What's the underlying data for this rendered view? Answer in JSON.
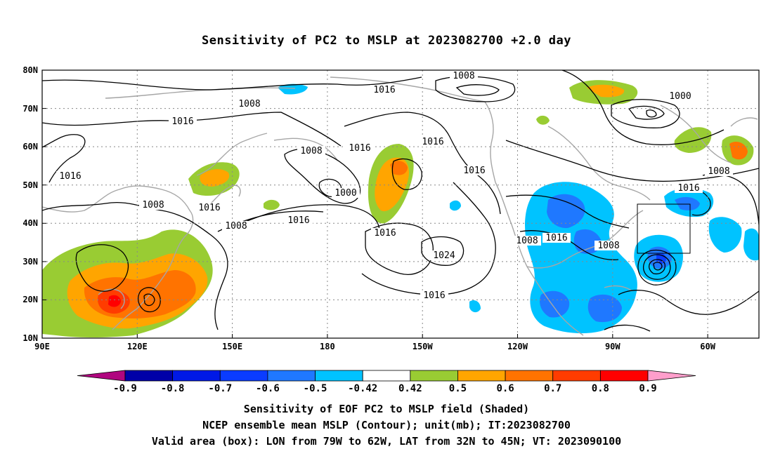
{
  "title": "Sensitivity of PC2 to MSLP at 2023082700 +2.0 day",
  "axes": {
    "lat_labels": [
      "80N",
      "70N",
      "60N",
      "50N",
      "40N",
      "30N",
      "20N",
      "10N"
    ],
    "lon_labels": [
      "90E",
      "120E",
      "150E",
      "180",
      "150W",
      "120W",
      "90W",
      "60W"
    ]
  },
  "contour_labels": [
    {
      "text": "1008"
    },
    {
      "text": "1008"
    },
    {
      "text": "1016"
    },
    {
      "text": "1016"
    },
    {
      "text": "1016"
    },
    {
      "text": "1000"
    },
    {
      "text": "1016"
    },
    {
      "text": "1008"
    },
    {
      "text": "1016"
    },
    {
      "text": "1008"
    },
    {
      "text": "1000"
    },
    {
      "text": "1016"
    },
    {
      "text": "1016"
    },
    {
      "text": "1008"
    },
    {
      "text": "1016"
    },
    {
      "text": "1016"
    },
    {
      "text": "1008"
    },
    {
      "text": "1016"
    },
    {
      "text": "1024"
    },
    {
      "text": "1008"
    },
    {
      "text": "1016"
    },
    {
      "text": "1008"
    },
    {
      "text": "1016"
    }
  ],
  "colorbar": {
    "labels": [
      "-0.9",
      "-0.8",
      "-0.7",
      "-0.6",
      "-0.5",
      "-0.42",
      "0.42",
      "0.5",
      "0.6",
      "0.7",
      "0.8",
      "0.9"
    ],
    "colors": [
      "#b0067f",
      "#0000a8",
      "#0019e6",
      "#0a3cff",
      "#1f78ff",
      "#00c3ff",
      "#ffffff",
      "#99cc33",
      "#ffa500",
      "#ff7300",
      "#ff3c00",
      "#ff0000",
      "#ff9ecb"
    ]
  },
  "captions": {
    "line1": "Sensitivity of EOF PC2 to MSLP field (Shaded)",
    "line2": "NCEP ensemble mean MSLP (Contour); unit(mb); IT:2023082700",
    "line3": "Valid area (box): LON from 79W to 62W, LAT from 32N to 45N; VT: 2023090100"
  }
}
